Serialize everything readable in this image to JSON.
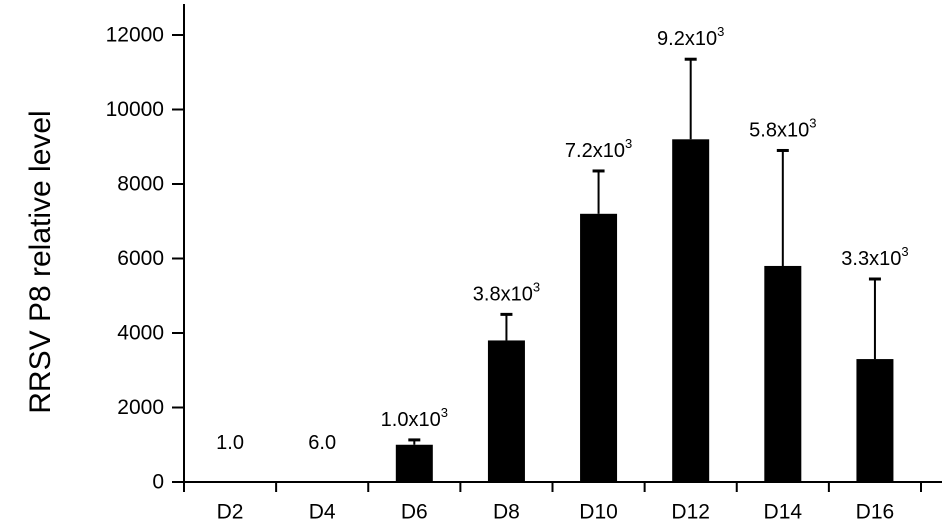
{
  "chart_data": {
    "type": "bar",
    "title": "",
    "xlabel": "",
    "ylabel": "RRSV P8 relative level",
    "ylim": [
      0,
      12000
    ],
    "yticks": [
      0,
      2000,
      4000,
      6000,
      8000,
      10000,
      12000
    ],
    "grid": false,
    "legend": null,
    "categories": [
      "D2",
      "D4",
      "D6",
      "D8",
      "D10",
      "D12",
      "D14",
      "D16"
    ],
    "values": [
      1.0,
      6.0,
      1000,
      3800,
      7200,
      9200,
      5800,
      3300
    ],
    "error_upper": [
      0,
      0,
      1130,
      4500,
      8350,
      11350,
      8900,
      5450
    ],
    "bar_labels": [
      {
        "base": "1.0",
        "exp": ""
      },
      {
        "base": "6.0",
        "exp": ""
      },
      {
        "base": "1.0x10",
        "exp": "3"
      },
      {
        "base": "3.8x10",
        "exp": "3"
      },
      {
        "base": "7.2x10",
        "exp": "3"
      },
      {
        "base": "9.2x10",
        "exp": "3"
      },
      {
        "base": "5.8x10",
        "exp": "3"
      },
      {
        "base": "3.3x10",
        "exp": "3"
      }
    ],
    "bar_color": "#000000"
  }
}
